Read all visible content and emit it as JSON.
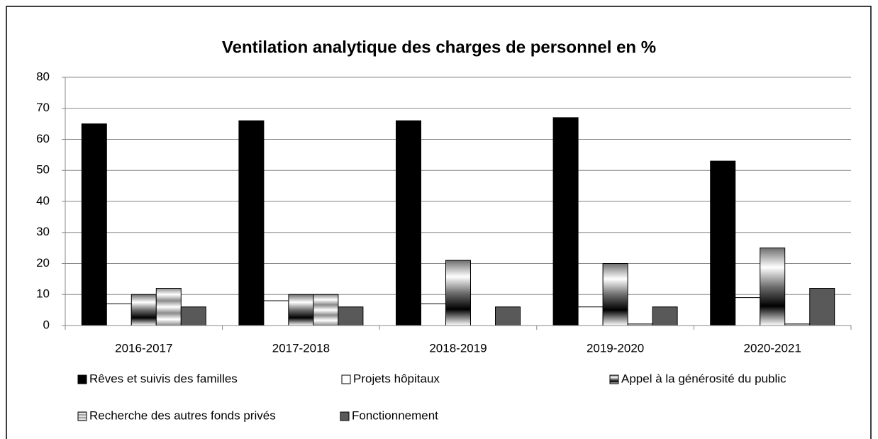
{
  "chart_data": {
    "type": "bar",
    "title": "Ventilation analytique des charges de personnel en %",
    "categories": [
      "2016-2017",
      "2017-2018",
      "2018-2019",
      "2019-2020",
      "2020-2021"
    ],
    "series": [
      {
        "name": "Rêves et suivis des familles",
        "color": "#000000",
        "values": [
          65,
          66,
          66,
          67,
          53
        ]
      },
      {
        "name": "Projets hôpitaux",
        "color": "#ffffff",
        "values": [
          7,
          8,
          7,
          6,
          9
        ]
      },
      {
        "name": "Appel à la générosité du public",
        "color": "#6e6e6e",
        "values": [
          10,
          10,
          21,
          20,
          25
        ]
      },
      {
        "name": "Recherche des autres fonds privés",
        "color": "#8a8a8a",
        "values": [
          12,
          10,
          0,
          0.5,
          0.5
        ]
      },
      {
        "name": "Fonctionnement",
        "color": "#595959",
        "values": [
          6,
          6,
          6,
          6,
          12
        ]
      }
    ],
    "ylim": [
      0,
      80
    ],
    "yticks": [
      0,
      10,
      20,
      30,
      40,
      50,
      60,
      70,
      80
    ],
    "grid": true
  }
}
